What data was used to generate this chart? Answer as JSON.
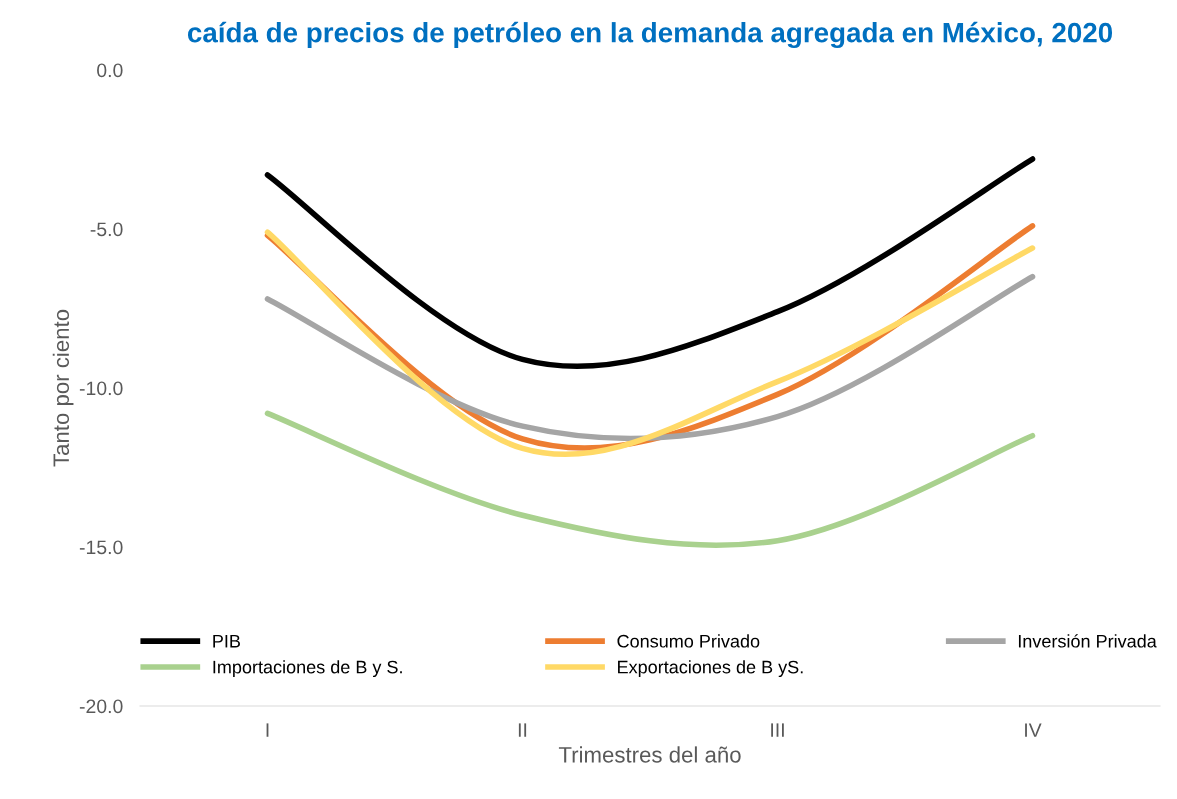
{
  "chart_data": {
    "type": "line",
    "title": "caída de precios de petróleo en la demanda agregada en México, 2020",
    "xlabel": "Trimestres del año",
    "ylabel": "Tanto por ciento",
    "categories": [
      "I",
      "II",
      "III",
      "IV"
    ],
    "series": [
      {
        "name": "PIB",
        "color": "#000000",
        "values": [
          -3.3,
          -9.1,
          -7.6,
          -2.8
        ]
      },
      {
        "name": "Consumo Privado",
        "color": "#ed7d31",
        "values": [
          -5.2,
          -11.6,
          -10.2,
          -4.9
        ]
      },
      {
        "name": "Inversión Privada",
        "color": "#a5a5a5",
        "values": [
          -7.2,
          -11.2,
          -10.9,
          -6.5
        ]
      },
      {
        "name": "Importaciones de B y S.",
        "color": "#a9d18e",
        "values": [
          -10.8,
          -14.0,
          -14.8,
          -11.5
        ]
      },
      {
        "name": "Exportaciones de B yS.",
        "color": "#ffd966",
        "values": [
          -5.1,
          -11.9,
          -9.8,
          -5.6
        ]
      }
    ],
    "ylim": [
      -20,
      0
    ],
    "yticks": [
      {
        "value": 0,
        "label": "0.0"
      },
      {
        "value": -5,
        "label": "-5.0"
      },
      {
        "value": -10,
        "label": "-10.0"
      },
      {
        "value": -15,
        "label": "-15.0"
      },
      {
        "value": -20,
        "label": "-20.0"
      }
    ],
    "grid": false,
    "legend": "bottom",
    "marker": "none",
    "line_style": "solid"
  }
}
